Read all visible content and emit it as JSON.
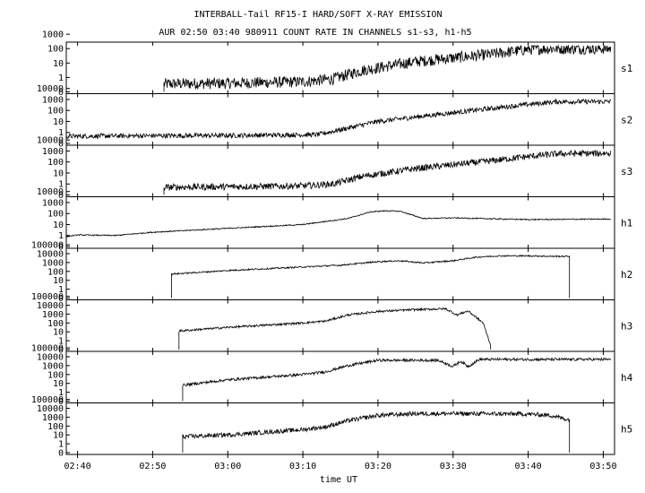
{
  "title": "INTERBALL-Tail RF15-I HARD/SOFT X-RAY EMISSION",
  "subtitle": "AUR 02:50 03:40 980911  COUNT RATE IN CHANNELS s1-s3, h1-h5",
  "chart_data": {
    "type": "line",
    "title": "INTERBALL-Tail RF15-I HARD/SOFT X-RAY EMISSION",
    "subtitle": "AUR 02:50 03:40 980911  COUNT RATE IN CHANNELS s1-s3, h1-h5",
    "xlabel": "time UT",
    "x_unit": "minutes after 02:30 UT",
    "x_ticks": [
      "02:40",
      "02:50",
      "03:00",
      "03:10",
      "03:20",
      "03:30",
      "03:40",
      "03:50"
    ],
    "x_tick_values": [
      10,
      20,
      30,
      40,
      50,
      60,
      70,
      80
    ],
    "xlim": [
      8.5,
      81.5
    ],
    "y_scale": "log",
    "panels": [
      {
        "name": "s1",
        "ylim": [
          0,
          3.2
        ],
        "y_ticks": [
          "1000",
          "100",
          "10",
          "1",
          "0"
        ],
        "noise": 0.4,
        "x": [
          21.5,
          30,
          40,
          44,
          48,
          55,
          65,
          70,
          73,
          81
        ],
        "y": [
          0.55,
          0.6,
          0.7,
          0.9,
          1.5,
          2.1,
          2.6,
          2.95,
          3.0,
          3.0
        ]
      },
      {
        "name": "s2",
        "ylim": [
          0,
          4.2
        ],
        "y_ticks": [
          "10000",
          "1000",
          "100",
          "10",
          "1",
          "0"
        ],
        "noise": 0.22,
        "x": [
          8.5,
          20,
          30,
          42,
          46,
          50,
          60,
          70,
          74,
          81
        ],
        "y": [
          0.65,
          0.7,
          0.72,
          0.8,
          1.4,
          2.0,
          2.8,
          3.55,
          3.8,
          3.8
        ]
      },
      {
        "name": "s3",
        "ylim": [
          0,
          4.2
        ],
        "y_ticks": [
          "10000",
          "1000",
          "100",
          "10",
          "1",
          "0"
        ],
        "noise": 0.3,
        "x": [
          21.5,
          30,
          40,
          44,
          48,
          55,
          65,
          70,
          74,
          81
        ],
        "y": [
          0.7,
          0.75,
          0.82,
          1.0,
          1.7,
          2.4,
          3.1,
          3.5,
          3.75,
          3.8
        ]
      },
      {
        "name": "h1",
        "ylim": [
          0,
          4.2
        ],
        "y_ticks": [
          "10000",
          "1000",
          "100",
          "10",
          "1",
          "0"
        ],
        "noise": 0.05,
        "x": [
          8.5,
          10,
          15,
          20,
          30,
          40,
          46,
          49,
          51,
          53,
          56,
          60,
          70,
          81
        ],
        "y": [
          0.9,
          1.05,
          1.0,
          1.3,
          1.65,
          2.0,
          2.55,
          3.15,
          3.25,
          3.2,
          2.55,
          2.6,
          2.45,
          2.5
        ]
      },
      {
        "name": "h2",
        "ylim": [
          0,
          5.2
        ],
        "y_ticks": [
          "100000",
          "10000",
          "1000",
          "100",
          "10",
          "1",
          "0"
        ],
        "noise": 0.08,
        "x": [
          22.5,
          30,
          40,
          45,
          50,
          53,
          56,
          60,
          63,
          66,
          70,
          73,
          75.5
        ],
        "y": [
          2.7,
          3.1,
          3.5,
          3.7,
          4.1,
          4.2,
          3.95,
          4.2,
          4.6,
          4.75,
          4.75,
          4.7,
          4.7
        ]
      },
      {
        "name": "h3",
        "ylim": [
          0,
          5.2
        ],
        "y_ticks": [
          "100000",
          "10000",
          "1000",
          "100",
          "10",
          "1",
          "0"
        ],
        "noise": 0.12,
        "x": [
          23.5,
          30,
          40,
          43,
          46,
          50,
          55,
          59,
          60.5,
          62,
          64,
          65
        ],
        "y": [
          2.1,
          2.5,
          3.0,
          3.2,
          3.9,
          4.3,
          4.5,
          4.6,
          3.9,
          4.35,
          3.0,
          0.5
        ]
      },
      {
        "name": "h4",
        "ylim": [
          0,
          5.2
        ],
        "y_ticks": [
          "100000",
          "10000",
          "1000",
          "100",
          "10",
          "1",
          "0"
        ],
        "noise": 0.15,
        "x": [
          24,
          30,
          40,
          43,
          46,
          50,
          58,
          60,
          61,
          62,
          63.5,
          70,
          81
        ],
        "y": [
          1.8,
          2.4,
          3.0,
          3.3,
          4.0,
          4.6,
          4.6,
          3.9,
          4.5,
          3.9,
          4.7,
          4.7,
          4.7
        ]
      },
      {
        "name": "h5",
        "ylim": [
          0,
          5.2
        ],
        "y_ticks": [
          "100000",
          "10000",
          "1000",
          "100",
          "10",
          "1",
          "0"
        ],
        "noise": 0.25,
        "x": [
          24,
          30,
          40,
          43,
          46,
          50,
          55,
          60,
          70,
          73,
          75.5
        ],
        "y": [
          1.8,
          2.0,
          2.6,
          2.9,
          3.6,
          4.2,
          4.4,
          4.4,
          4.35,
          4.2,
          3.7
        ]
      }
    ]
  }
}
